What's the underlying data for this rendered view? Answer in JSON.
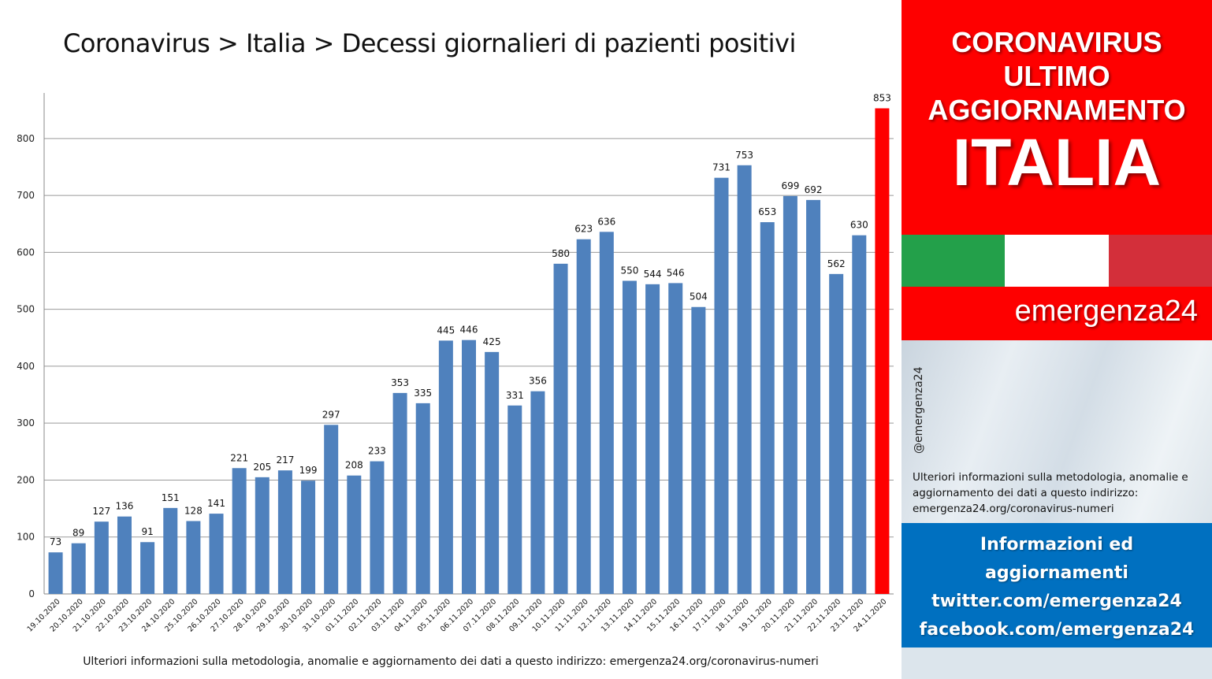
{
  "title": "Coronavirus > Italia > Decessi giornalieri di pazienti positivi",
  "footnote": "Ulteriori informazioni sulla metodologia, anomalie e aggiornamento dei dati a questo indirizzo: emergenza24.org/coronavirus-numeri",
  "sidebar": {
    "header_line1": "CORONAVIRUS",
    "header_line2": "ULTIMO",
    "header_line3": "AGGIORNAMENTO",
    "header_big": "ITALIA",
    "brand": "emergenza24",
    "handle": "@emergenza24",
    "info_text": "Ulteriori informazioni sulla metodologia, anomalie e aggiornamento dei dati a questo indirizzo: emergenza24.org/coronavirus-numeri",
    "info_line1": "Informazioni ed",
    "info_line2": "aggiornamenti",
    "info_line3": "twitter.com/emergenza24",
    "info_line4": "facebook.com/emergenza24",
    "flag_colors": [
      "#23a04a",
      "#ffffff",
      "#d32f3a"
    ]
  },
  "colors": {
    "bar": "#4f81bd",
    "highlight_bar": "#fe0000",
    "red_box": "#fe0000",
    "blue_box": "#0070c0"
  },
  "chart_data": {
    "type": "bar",
    "title": "Coronavirus > Italia > Decessi giornalieri di pazienti positivi",
    "xlabel": "",
    "ylabel": "",
    "ylim": [
      0,
      880
    ],
    "yticks": [
      0,
      100,
      200,
      300,
      400,
      500,
      600,
      700,
      800
    ],
    "grid": true,
    "data_labels": true,
    "highlight_last": true,
    "categories": [
      "19.10.2020",
      "20.10.2020",
      "21.10.2020",
      "22.10.2020",
      "23.10.2020",
      "24.10.2020",
      "25.10.2020",
      "26.10.2020",
      "27.10.2020",
      "28.10.2020",
      "29.10.2020",
      "30.10.2020",
      "31.10.2020",
      "01.11.2020",
      "02.11.2020",
      "03.11.2020",
      "04.11.2020",
      "05.11.2020",
      "06.11.2020",
      "07.11.2020",
      "08.11.2020",
      "09.11.2020",
      "10.11.2020",
      "11.11.2020",
      "12.11.2020",
      "13.11.2020",
      "14.11.2020",
      "15.11.2020",
      "16.11.2020",
      "17.11.2020",
      "18.11.2020",
      "19.11.2020",
      "20.11.2020",
      "21.11.2020",
      "22.11.2020",
      "23.11.2020",
      "24.11.2020"
    ],
    "values": [
      73,
      89,
      127,
      136,
      91,
      151,
      128,
      141,
      221,
      205,
      217,
      199,
      297,
      208,
      233,
      353,
      335,
      445,
      446,
      425,
      331,
      356,
      580,
      623,
      636,
      550,
      544,
      546,
      504,
      731,
      753,
      653,
      699,
      692,
      562,
      630,
      853
    ]
  }
}
